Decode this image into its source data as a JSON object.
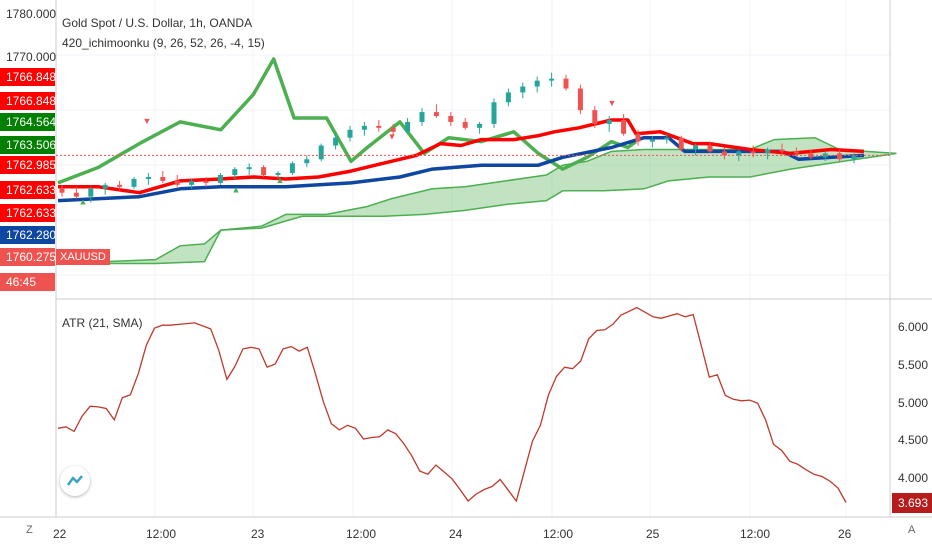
{
  "header": {
    "title": "Gold Spot / U.S. Dollar, 1h, OANDA",
    "indicator": "420_ichimoonku (9, 26, 52, 26, -4, 15)",
    "symbol": "XAUUSD"
  },
  "left_scale": {
    "values": [
      "1780.000",
      "1770.000"
    ],
    "price_labels": [
      {
        "text": "1766.848",
        "color": "#ff0000"
      },
      {
        "text": "1766.848",
        "color": "#ff0000"
      },
      {
        "text": "1764.564",
        "color": "#008000"
      },
      {
        "text": "1763.506",
        "color": "#008000"
      },
      {
        "text": "1762.985",
        "color": "#ff0000"
      },
      {
        "text": "1762.633",
        "color": "#ff0000"
      },
      {
        "text": "1762.633",
        "color": "#ff0000"
      },
      {
        "text": "1762.280",
        "color": "#0d47a1"
      },
      {
        "text": "1760.275",
        "color": "#ef5350"
      },
      {
        "text": "46:45",
        "color": "#ef5350"
      }
    ]
  },
  "atr": {
    "label": "ATR (21, SMA)",
    "current": "3.693",
    "scale": [
      "6.000",
      "5.500",
      "5.000",
      "4.500",
      "4.000"
    ]
  },
  "x_axis": [
    "22",
    "12:00",
    "23",
    "12:00",
    "24",
    "12:00",
    "25",
    "12:00",
    "26"
  ],
  "controls": {
    "left": "Z",
    "right": "A"
  },
  "colors": {
    "tenkan": "#ff0000",
    "kijun": "#0d47a1",
    "chikou": "#4caf50",
    "cloud": "#4caf50",
    "bull": "#26a69a",
    "bear": "#ef5350",
    "atr": "#c0392b"
  },
  "chart_data": [
    {
      "type": "candlestick",
      "title": "Gold Spot / U.S. Dollar, 1h, OANDA",
      "series": [
        {
          "name": "Tenkan",
          "color": "#ff0000",
          "points": [
            [
              0,
              1763.0
            ],
            [
              10,
              1763.0
            ],
            [
              20,
              1762.4
            ],
            [
              30,
              1763.6
            ],
            [
              40,
              1763.8
            ],
            [
              48,
              1764.0
            ],
            [
              56,
              1763.8
            ],
            [
              64,
              1764.0
            ],
            [
              72,
              1764.6
            ],
            [
              80,
              1765.4
            ],
            [
              88,
              1766.2
            ],
            [
              94,
              1767.4
            ],
            [
              99,
              1767.2
            ],
            [
              104,
              1767.8
            ],
            [
              112,
              1767.8
            ],
            [
              118,
              1768.2
            ],
            [
              122,
              1768.6
            ],
            [
              128,
              1769.0
            ],
            [
              136,
              1769.8
            ],
            [
              140,
              1769.8
            ],
            [
              142,
              1768.4
            ],
            [
              148,
              1768.6
            ],
            [
              152,
              1768.0
            ],
            [
              156,
              1767.4
            ],
            [
              160,
              1767.4
            ],
            [
              170,
              1766.8
            ],
            [
              180,
              1766.4
            ],
            [
              190,
              1766.8
            ],
            [
              198,
              1766.6
            ]
          ]
        },
        {
          "name": "Kijun",
          "color": "#0d47a1",
          "points": [
            [
              0,
              1761.6
            ],
            [
              20,
              1762.0
            ],
            [
              30,
              1762.8
            ],
            [
              40,
              1763.0
            ],
            [
              56,
              1763.0
            ],
            [
              72,
              1763.4
            ],
            [
              84,
              1764.0
            ],
            [
              92,
              1764.8
            ],
            [
              104,
              1765.2
            ],
            [
              118,
              1765.2
            ],
            [
              124,
              1766.0
            ],
            [
              136,
              1767.0
            ],
            [
              144,
              1768.0
            ],
            [
              150,
              1768.0
            ],
            [
              154,
              1766.6
            ],
            [
              166,
              1766.6
            ],
            [
              178,
              1766.6
            ],
            [
              182,
              1765.8
            ],
            [
              198,
              1766.2
            ]
          ]
        },
        {
          "name": "Chikou",
          "color": "#4caf50",
          "points": [
            [
              0,
              1763.4
            ],
            [
              10,
              1765.0
            ],
            [
              20,
              1767.4
            ],
            [
              30,
              1769.6
            ],
            [
              40,
              1768.8
            ],
            [
              48,
              1772.4
            ],
            [
              53,
              1776.0
            ],
            [
              58,
              1770.0
            ],
            [
              66,
              1770.0
            ],
            [
              72,
              1765.6
            ],
            [
              76,
              1767.0
            ],
            [
              84,
              1769.6
            ],
            [
              90,
              1766.4
            ],
            [
              96,
              1768.0
            ],
            [
              104,
              1767.6
            ],
            [
              112,
              1768.6
            ],
            [
              118,
              1766.4
            ],
            [
              124,
              1764.8
            ],
            [
              130,
              1766.0
            ],
            [
              136,
              1767.6
            ],
            [
              140,
              1767.0
            ],
            [
              142,
              1767.6
            ]
          ]
        },
        {
          "name": "Senkou A",
          "color": "#4caf50",
          "points": [
            [
              0,
              1755.2
            ],
            [
              24,
              1755.6
            ],
            [
              30,
              1757.0
            ],
            [
              36,
              1757.2
            ],
            [
              40,
              1758.6
            ],
            [
              50,
              1759.0
            ],
            [
              56,
              1760.2
            ],
            [
              66,
              1760.2
            ],
            [
              76,
              1761.0
            ],
            [
              82,
              1761.8
            ],
            [
              92,
              1762.8
            ],
            [
              100,
              1763.0
            ],
            [
              110,
              1763.6
            ],
            [
              120,
              1764.2
            ],
            [
              124,
              1765.2
            ],
            [
              130,
              1765.6
            ],
            [
              136,
              1766.6
            ],
            [
              144,
              1766.8
            ],
            [
              150,
              1766.8
            ],
            [
              170,
              1766.8
            ],
            [
              176,
              1767.8
            ],
            [
              186,
              1768.0
            ],
            [
              192,
              1766.8
            ],
            [
              206,
              1766.4
            ]
          ]
        },
        {
          "name": "Senkou B",
          "color": "#4caf50",
          "points": [
            [
              0,
              1755.2
            ],
            [
              24,
              1755.2
            ],
            [
              36,
              1755.4
            ],
            [
              40,
              1758.6
            ],
            [
              50,
              1758.8
            ],
            [
              60,
              1760.0
            ],
            [
              70,
              1760.0
            ],
            [
              80,
              1760.0
            ],
            [
              90,
              1760.2
            ],
            [
              100,
              1760.6
            ],
            [
              110,
              1761.2
            ],
            [
              120,
              1761.6
            ],
            [
              124,
              1762.6
            ],
            [
              134,
              1762.6
            ],
            [
              144,
              1762.8
            ],
            [
              150,
              1763.6
            ],
            [
              160,
              1764.0
            ],
            [
              170,
              1764.0
            ],
            [
              180,
              1764.8
            ],
            [
              206,
              1766.4
            ]
          ]
        }
      ],
      "candles_ohlc": [
        [
          1762.8,
          1763.2,
          1762.0,
          1762.4
        ],
        [
          1762.4,
          1763.0,
          1761.8,
          1762.0
        ],
        [
          1762.0,
          1763.0,
          1761.4,
          1762.8
        ],
        [
          1762.8,
          1763.4,
          1762.2,
          1763.2
        ],
        [
          1763.2,
          1763.6,
          1762.6,
          1763.0
        ],
        [
          1763.0,
          1764.0,
          1762.8,
          1763.8
        ],
        [
          1763.8,
          1764.4,
          1763.2,
          1764.0
        ],
        [
          1764.0,
          1764.6,
          1763.4,
          1763.6
        ],
        [
          1763.6,
          1764.2,
          1763.0,
          1763.2
        ],
        [
          1763.2,
          1763.8,
          1762.8,
          1763.6
        ],
        [
          1763.6,
          1764.0,
          1763.0,
          1763.4
        ],
        [
          1763.4,
          1764.4,
          1763.2,
          1764.2
        ],
        [
          1764.2,
          1765.0,
          1763.8,
          1764.8
        ],
        [
          1764.8,
          1765.4,
          1764.2,
          1765.0
        ],
        [
          1765.0,
          1765.2,
          1764.0,
          1764.2
        ],
        [
          1764.2,
          1764.6,
          1763.8,
          1764.4
        ],
        [
          1764.4,
          1765.6,
          1764.2,
          1765.4
        ],
        [
          1765.4,
          1766.2,
          1765.0,
          1765.8
        ],
        [
          1765.8,
          1767.4,
          1765.6,
          1767.2
        ],
        [
          1767.2,
          1768.4,
          1766.8,
          1768.0
        ],
        [
          1768.0,
          1769.2,
          1767.6,
          1768.8
        ],
        [
          1768.8,
          1769.6,
          1768.2,
          1769.2
        ],
        [
          1769.2,
          1769.8,
          1768.6,
          1769.0
        ],
        [
          1769.0,
          1769.4,
          1768.2,
          1768.6
        ],
        [
          1768.6,
          1770.0,
          1768.4,
          1769.6
        ],
        [
          1769.6,
          1771.0,
          1769.2,
          1770.6
        ],
        [
          1770.6,
          1771.4,
          1770.0,
          1770.2
        ],
        [
          1770.2,
          1770.6,
          1769.2,
          1769.6
        ],
        [
          1769.6,
          1770.0,
          1768.8,
          1769.0
        ],
        [
          1769.0,
          1769.6,
          1768.4,
          1769.4
        ],
        [
          1769.4,
          1772.0,
          1769.0,
          1771.6
        ],
        [
          1771.6,
          1773.0,
          1771.2,
          1772.6
        ],
        [
          1772.6,
          1773.6,
          1772.0,
          1773.2
        ],
        [
          1773.2,
          1774.2,
          1772.6,
          1773.8
        ],
        [
          1773.8,
          1774.6,
          1773.2,
          1774.0
        ],
        [
          1774.0,
          1774.4,
          1772.8,
          1773.0
        ],
        [
          1773.0,
          1773.4,
          1770.4,
          1770.8
        ],
        [
          1770.8,
          1771.2,
          1769.0,
          1769.4
        ],
        [
          1769.4,
          1770.2,
          1768.6,
          1769.8
        ],
        [
          1769.8,
          1770.4,
          1768.2,
          1768.4
        ],
        [
          1768.4,
          1768.8,
          1767.2,
          1767.6
        ],
        [
          1767.6,
          1768.2,
          1767.0,
          1767.8
        ],
        [
          1767.8,
          1768.4,
          1767.4,
          1768.0
        ],
        [
          1768.0,
          1768.2,
          1766.6,
          1766.8
        ],
        [
          1766.8,
          1767.4,
          1766.2,
          1767.2
        ],
        [
          1767.2,
          1767.6,
          1766.4,
          1766.6
        ],
        [
          1766.6,
          1767.0,
          1765.8,
          1766.2
        ],
        [
          1766.2,
          1766.8,
          1765.6,
          1766.6
        ],
        [
          1766.6,
          1767.2,
          1766.0,
          1766.4
        ],
        [
          1766.4,
          1767.0,
          1765.8,
          1766.8
        ],
        [
          1766.8,
          1767.4,
          1766.2,
          1766.6
        ],
        [
          1766.6,
          1767.0,
          1766.0,
          1766.4
        ],
        [
          1766.4,
          1766.8,
          1765.8,
          1766.0
        ],
        [
          1766.0,
          1766.6,
          1765.6,
          1766.4
        ],
        [
          1766.4,
          1766.8,
          1765.6,
          1765.8
        ],
        [
          1765.8,
          1766.4,
          1765.4,
          1766.2
        ]
      ],
      "markers": [
        {
          "label": "▲",
          "value": 1761.2
        },
        {
          "label": "▲",
          "value": 1762.4
        },
        {
          "label": "▼",
          "value": 1767.8
        },
        {
          "label": "▲",
          "value": 1763.4
        },
        {
          "label": "▼",
          "value": 1771.2
        },
        {
          "label": "▼",
          "value": 1769.4
        }
      ],
      "ylim": [
        1752.0,
        1782.0
      ],
      "left_axis_ticks": [
        1780,
        1770
      ],
      "current_price": 1766.2
    },
    {
      "type": "line",
      "title": "ATR (21, SMA)",
      "series": [
        {
          "name": "ATR",
          "color": "#c0392b",
          "values": [
            4.66,
            4.68,
            4.62,
            4.82,
            4.95,
            4.94,
            4.92,
            4.77,
            5.06,
            5.1,
            5.38,
            5.75,
            5.97,
            6.01,
            6.01,
            6.02,
            6.03,
            6.04,
            6.0,
            5.96,
            5.68,
            5.3,
            5.47,
            5.7,
            5.72,
            5.7,
            5.46,
            5.5,
            5.7,
            5.73,
            5.67,
            5.72,
            5.38,
            5.01,
            4.72,
            4.64,
            4.7,
            4.66,
            4.52,
            4.54,
            4.55,
            4.64,
            4.59,
            4.46,
            4.3,
            4.1,
            4.06,
            4.18,
            4.09,
            4.0,
            3.86,
            3.71,
            3.8,
            3.86,
            3.9,
            3.99,
            3.85,
            3.71,
            4.1,
            4.49,
            4.7,
            5.1,
            5.34,
            5.46,
            5.44,
            5.54,
            5.83,
            5.94,
            5.95,
            6.02,
            6.14,
            6.19,
            6.24,
            6.18,
            6.12,
            6.1,
            6.13,
            6.16,
            6.12,
            6.15,
            5.74,
            5.33,
            5.36,
            5.09,
            5.04,
            5.02,
            5.03,
            4.99,
            4.77,
            4.45,
            4.37,
            4.23,
            4.19,
            4.12,
            4.06,
            4.03,
            3.97,
            3.88,
            3.69
          ]
        }
      ],
      "ylim": [
        3.5,
        6.3
      ],
      "y_ticks": [
        6.0,
        5.5,
        5.0,
        4.5,
        4.0
      ],
      "current": 3.693
    }
  ]
}
